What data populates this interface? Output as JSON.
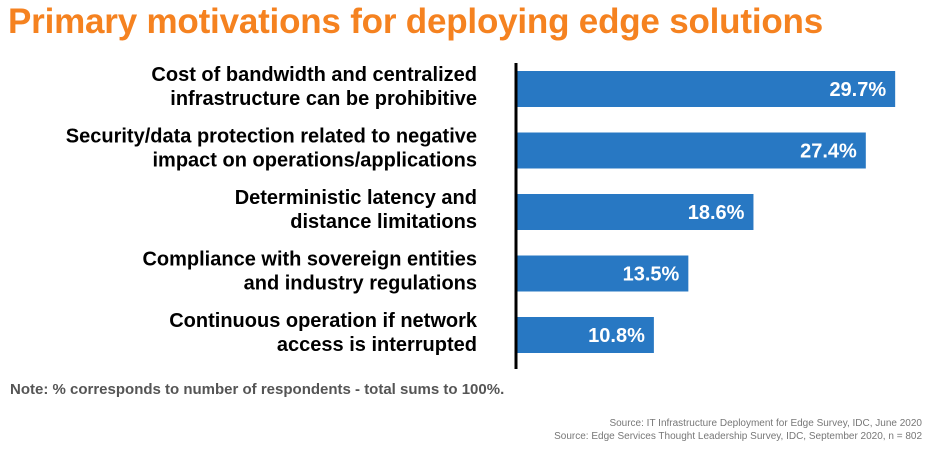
{
  "chart_data": {
    "type": "bar",
    "orientation": "horizontal",
    "title": "Primary motivations for deploying edge solutions",
    "categories": [
      [
        "Cost of bandwidth and centralized",
        "infrastructure can be prohibitive"
      ],
      [
        "Security/data protection related to negative",
        "impact on operations/applications"
      ],
      [
        "Deterministic latency and",
        "distance limitations"
      ],
      [
        "Compliance with sovereign entities",
        "and industry regulations"
      ],
      [
        "Continuous operation if network",
        "access is interrupted"
      ]
    ],
    "values": [
      29.7,
      27.4,
      18.6,
      13.5,
      10.8
    ],
    "value_labels": [
      "29.7%",
      "27.4%",
      "18.6%",
      "13.5%",
      "10.8%"
    ],
    "xlim": [
      0,
      30
    ],
    "grid": false,
    "legend": "none",
    "bar_color": "#2878C3",
    "title_color": "#F58220"
  },
  "note": "Note: % corresponds to number of respondents - total sums to 100%.",
  "sources": [
    "Source: IT Infrastructure Deployment for Edge Survey, IDC, June 2020",
    "Source: Edge Services Thought Leadership Survey, IDC, September 2020, n = 802"
  ]
}
